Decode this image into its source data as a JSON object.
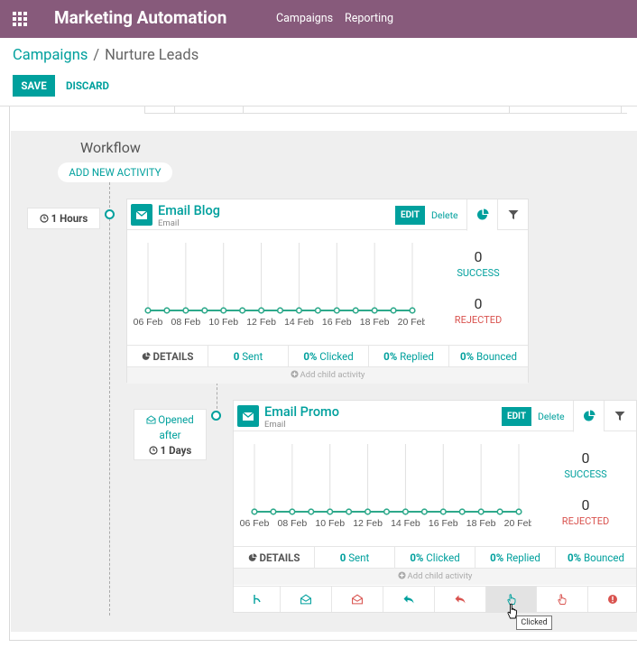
{
  "navbar": {
    "app_title": "Marketing Automation",
    "menu": [
      "Campaigns",
      "Reporting"
    ],
    "background": "#875a7b"
  },
  "breadcrumb": {
    "parent": "Campaigns",
    "current": "Nurture Leads"
  },
  "buttons": {
    "save": "SAVE",
    "discard": "DISCARD"
  },
  "workflow": {
    "title": "Workflow",
    "add_activity": "ADD NEW ACTIVITY",
    "accent_color": "#00a09d",
    "rejected_color": "#d9534f"
  },
  "activities": [
    {
      "trigger": {
        "line1": "1 Hours"
      },
      "title": "Email Blog",
      "subtitle": "Email",
      "edit": "EDIT",
      "delete": "Delete",
      "tabs": [
        "pie-chart-icon",
        "filter-icon"
      ],
      "chart_data": {
        "type": "line",
        "categories": [
          "06 Feb",
          "07 Feb",
          "08 Feb",
          "09 Feb",
          "10 Feb",
          "11 Feb",
          "12 Feb",
          "13 Feb",
          "14 Feb",
          "15 Feb",
          "16 Feb",
          "17 Feb",
          "18 Feb",
          "19 Feb",
          "20 Feb"
        ],
        "tick_labels": [
          "06 Feb",
          "08 Feb",
          "10 Feb",
          "12 Feb",
          "14 Feb",
          "16 Feb",
          "18 Feb",
          "20 Feb"
        ],
        "values": [
          0,
          0,
          0,
          0,
          0,
          0,
          0,
          0,
          0,
          0,
          0,
          0,
          0,
          0,
          0
        ]
      },
      "stats": {
        "success_count": "0",
        "success_label": "SUCCESS",
        "rejected_count": "0",
        "rejected_label": "REJECTED"
      },
      "details": {
        "label": "DETAILS",
        "sent_num": "0",
        "sent_label": "Sent",
        "clicked_num": "0%",
        "clicked_label": "Clicked",
        "replied_num": "0%",
        "replied_label": "Replied",
        "bounced_num": "0%",
        "bounced_label": "Bounced"
      },
      "add_child": "Add child activity"
    },
    {
      "trigger": {
        "line1": "Opened",
        "line2": "after",
        "line3": "1 Days"
      },
      "title": "Email Promo",
      "subtitle": "Email",
      "edit": "EDIT",
      "delete": "Delete",
      "tabs": [
        "pie-chart-icon",
        "filter-icon"
      ],
      "chart_data": {
        "type": "line",
        "categories": [
          "06 Feb",
          "07 Feb",
          "08 Feb",
          "09 Feb",
          "10 Feb",
          "11 Feb",
          "12 Feb",
          "13 Feb",
          "14 Feb",
          "15 Feb",
          "16 Feb",
          "17 Feb",
          "18 Feb",
          "19 Feb",
          "20 Feb"
        ],
        "tick_labels": [
          "06 Feb",
          "08 Feb",
          "10 Feb",
          "12 Feb",
          "14 Feb",
          "16 Feb",
          "18 Feb",
          "20 Feb"
        ],
        "values": [
          0,
          0,
          0,
          0,
          0,
          0,
          0,
          0,
          0,
          0,
          0,
          0,
          0,
          0,
          0
        ]
      },
      "stats": {
        "success_count": "0",
        "success_label": "SUCCESS",
        "rejected_count": "0",
        "rejected_label": "REJECTED"
      },
      "details": {
        "label": "DETAILS",
        "sent_num": "0",
        "sent_label": "Sent",
        "clicked_num": "0%",
        "clicked_label": "Clicked",
        "replied_num": "0%",
        "replied_label": "Replied",
        "bounced_num": "0%",
        "bounced_label": "Bounced"
      },
      "add_child": "Add child activity",
      "child_actions": [
        "timer-icon",
        "envelope-open-icon",
        "envelope-open-not-icon",
        "reply-icon",
        "reply-not-icon",
        "hand-click-icon",
        "hand-not-click-icon",
        "bounce-icon"
      ]
    }
  ],
  "tooltip": "Clicked"
}
